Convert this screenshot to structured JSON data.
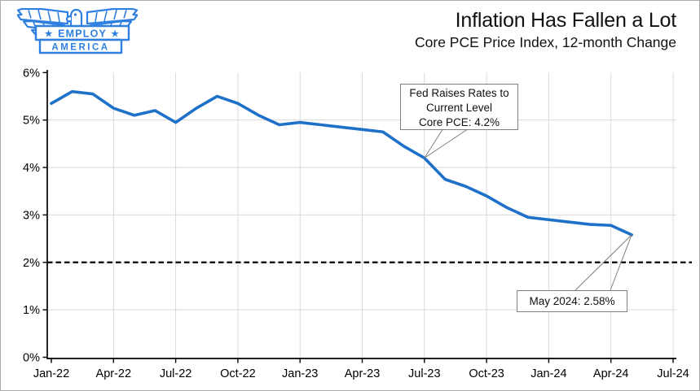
{
  "logo": {
    "alt": "Employ America",
    "line1": "★ EMPLOY ★",
    "line2": "AMERICA",
    "color": "#2E7FE0"
  },
  "header": {
    "title": "Inflation Has Fallen a Lot",
    "subtitle": "Core PCE Price Index, 12-month Change"
  },
  "callouts": {
    "fed": {
      "line1": "Fed Raises Rates to",
      "line2": "Current Level",
      "line3": "Core PCE: 4.2%",
      "month_index": 18,
      "value": 4.2
    },
    "may": {
      "text": "May 2024: 2.58%",
      "month_index": 28,
      "value": 2.58
    }
  },
  "chart_data": {
    "type": "line",
    "title": "Inflation Has Fallen a Lot",
    "subtitle": "Core PCE Price Index, 12-month Change",
    "x": [
      "Jan-22",
      "Feb-22",
      "Mar-22",
      "Apr-22",
      "May-22",
      "Jun-22",
      "Jul-22",
      "Aug-22",
      "Sep-22",
      "Oct-22",
      "Nov-22",
      "Dec-22",
      "Jan-23",
      "Feb-23",
      "Mar-23",
      "Apr-23",
      "May-23",
      "Jun-23",
      "Jul-23",
      "Aug-23",
      "Sep-23",
      "Oct-23",
      "Nov-23",
      "Dec-23",
      "Jan-24",
      "Feb-24",
      "Mar-24",
      "Apr-24",
      "May-24"
    ],
    "values": [
      5.35,
      5.6,
      5.55,
      5.25,
      5.1,
      5.2,
      4.95,
      5.25,
      5.5,
      5.35,
      5.1,
      4.9,
      4.95,
      4.9,
      4.85,
      4.8,
      4.75,
      4.45,
      4.2,
      3.75,
      3.6,
      3.4,
      3.15,
      2.95,
      2.9,
      2.85,
      2.8,
      2.78,
      2.58
    ],
    "series_name": "Core PCE Price Index, 12-month % change",
    "x_tick_labels": [
      "Jan-22",
      "Apr-22",
      "Jul-22",
      "Oct-22",
      "Jan-23",
      "Apr-23",
      "Jul-23",
      "Oct-23",
      "Jan-24",
      "Apr-24",
      "Jul-24"
    ],
    "y_tick_labels": [
      "0%",
      "1%",
      "2%",
      "3%",
      "4%",
      "5%",
      "6%"
    ],
    "ylim": [
      0,
      6
    ],
    "x_axis_months_total": 30,
    "grid": true,
    "legend": "none",
    "line_color": "#1E70C8",
    "grid_color": "#D9D9D9",
    "axis_color": "#000000",
    "reference_line": {
      "y": 2,
      "style": "dashed",
      "color": "#000000"
    },
    "annotations": [
      {
        "label": "Fed Raises Rates to Current Level Core PCE: 4.2%",
        "x": "Jul-23",
        "y": 4.2
      },
      {
        "label": "May 2024: 2.58%",
        "x": "May-24",
        "y": 2.58
      }
    ]
  }
}
